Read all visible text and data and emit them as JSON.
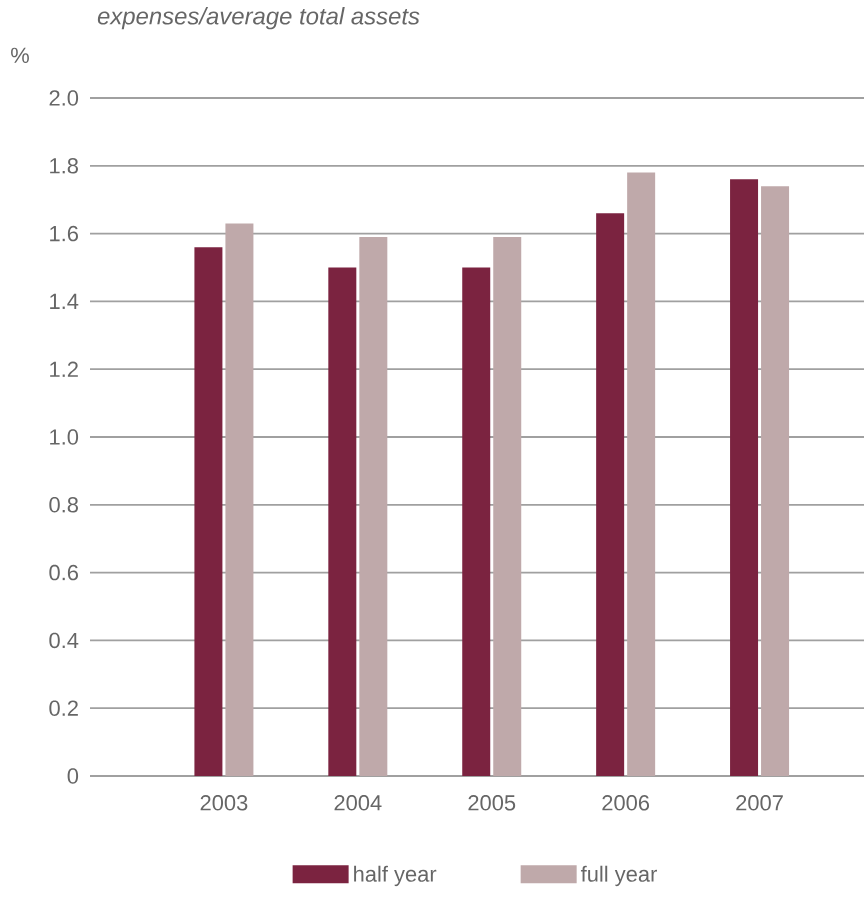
{
  "chart_data": {
    "type": "bar",
    "title": "expenses/average total assets",
    "ylabel": "%",
    "categories": [
      "2003",
      "2004",
      "2005",
      "2006",
      "2007"
    ],
    "series": [
      {
        "name": "half year",
        "color": "#7b2340",
        "values": [
          1.56,
          1.5,
          1.5,
          1.66,
          1.76
        ]
      },
      {
        "name": "full year",
        "color": "#bfa9aa",
        "values": [
          1.63,
          1.59,
          1.59,
          1.78,
          1.74
        ]
      }
    ],
    "ylim": [
      0,
      2.0
    ],
    "yticks": [
      0,
      0.2,
      0.4,
      0.6,
      0.8,
      {
        "value": 1,
        "label": "1.0"
      },
      1.2,
      1.4,
      1.6,
      1.8,
      {
        "value": 2,
        "label": "2.0"
      }
    ],
    "grid": "y",
    "legend": "bottom"
  }
}
